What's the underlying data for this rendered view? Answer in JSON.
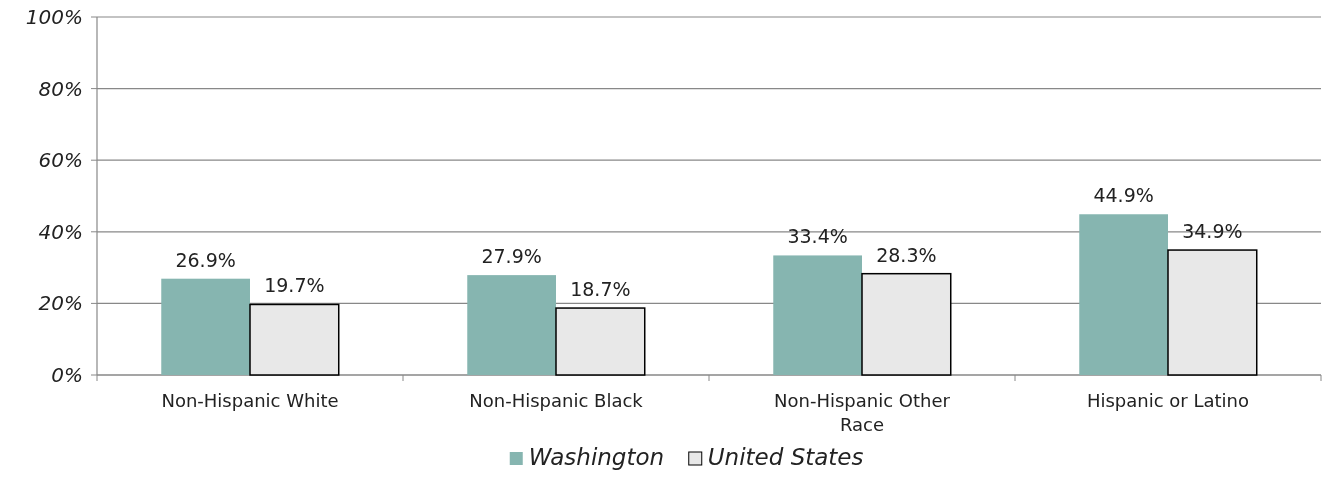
{
  "chart_data": {
    "type": "bar",
    "categories": [
      "Non-Hispanic White",
      "Non-Hispanic Black",
      "Non-Hispanic Other Race",
      "Hispanic or Latino"
    ],
    "series": [
      {
        "name": "Washington",
        "color": "#86b5b0",
        "values": [
          26.9,
          27.9,
          33.4,
          44.9
        ],
        "value_labels": [
          "26.9%",
          "27.9%",
          "33.4%",
          "44.9%"
        ]
      },
      {
        "name": "United States",
        "color": "#e8e8e8",
        "values": [
          19.7,
          18.7,
          28.3,
          34.9
        ],
        "value_labels": [
          "19.7%",
          "18.7%",
          "28.3%",
          "34.9%"
        ]
      }
    ],
    "ylim": [
      0,
      100
    ],
    "yticks": [
      {
        "value": 0,
        "label": "0%"
      },
      {
        "value": 20,
        "label": "20%"
      },
      {
        "value": 40,
        "label": "40%"
      },
      {
        "value": 60,
        "label": "60%"
      },
      {
        "value": 80,
        "label": "80%"
      },
      {
        "value": 100,
        "label": "100%"
      }
    ],
    "grid": "y",
    "legend": "bottom"
  }
}
